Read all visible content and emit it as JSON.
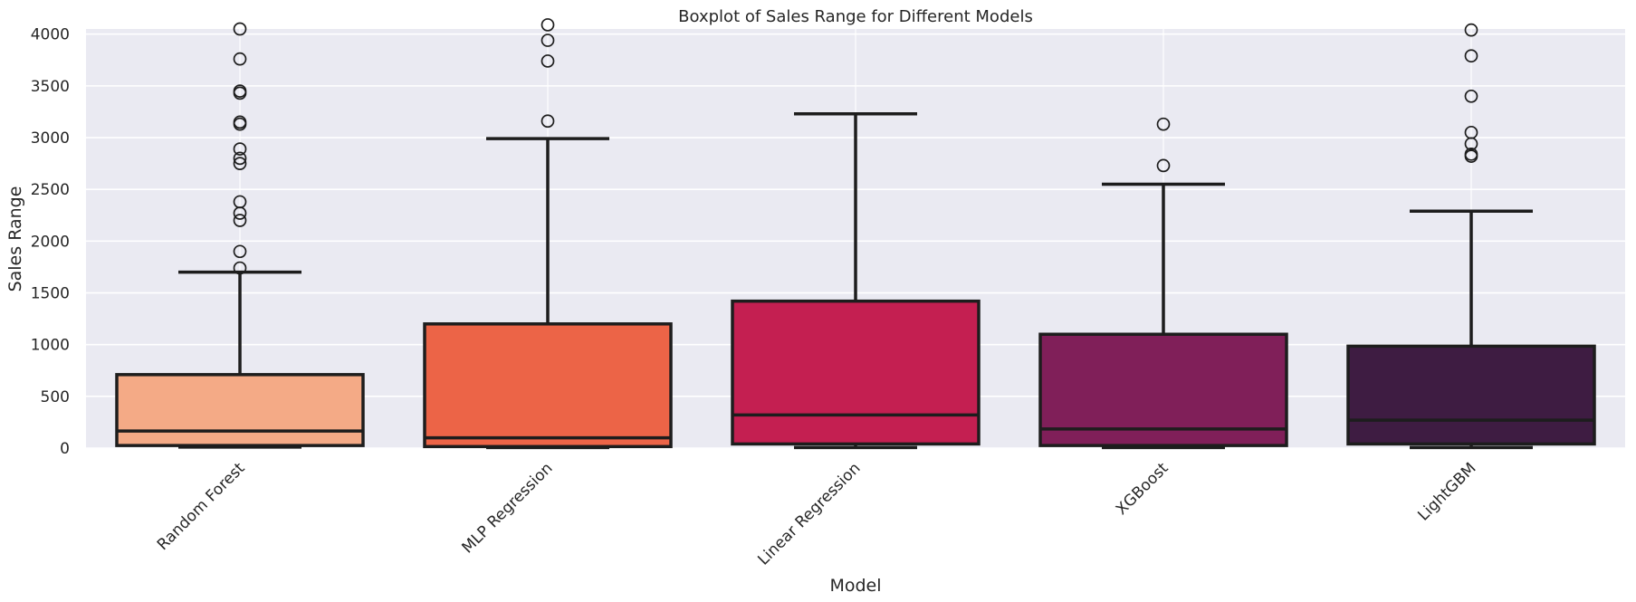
{
  "chart_data": {
    "type": "box",
    "title": "Boxplot of Sales Range for Different Models",
    "xlabel": "Model",
    "ylabel": "Sales Range",
    "ylim": [
      0,
      4050
    ],
    "yticks": [
      0,
      500,
      1000,
      1500,
      2000,
      2500,
      3000,
      3500,
      4000
    ],
    "grid": true,
    "categories": [
      "Random Forest",
      "MLP Regression",
      "Linear Regression",
      "XGBoost",
      "LightGBM"
    ],
    "colors": [
      "#f4aa86",
      "#ec6447",
      "#c41f51",
      "#801f59",
      "#3e1c42"
    ],
    "series": [
      {
        "name": "Random Forest",
        "whisker_low": 10,
        "q1": 25,
        "median": 165,
        "q3": 710,
        "whisker_high": 1700,
        "outliers": [
          1740,
          1900,
          2200,
          2270,
          2380,
          2750,
          2800,
          2890,
          3130,
          3150,
          3430,
          3450,
          3760,
          4050
        ]
      },
      {
        "name": "MLP Regression",
        "whisker_low": 5,
        "q1": 15,
        "median": 100,
        "q3": 1200,
        "whisker_high": 2990,
        "outliers": [
          3160,
          3740,
          3940,
          4090
        ]
      },
      {
        "name": "Linear Regression",
        "whisker_low": 5,
        "q1": 40,
        "median": 320,
        "q3": 1420,
        "whisker_high": 3230,
        "outliers": []
      },
      {
        "name": "XGBoost",
        "whisker_low": 5,
        "q1": 25,
        "median": 185,
        "q3": 1100,
        "whisker_high": 2550,
        "outliers": [
          2730,
          3130
        ]
      },
      {
        "name": "LightGBM",
        "whisker_low": 5,
        "q1": 40,
        "median": 270,
        "q3": 985,
        "whisker_high": 2290,
        "outliers": [
          2820,
          2840,
          2940,
          3050,
          3400,
          3790,
          4040
        ]
      }
    ]
  }
}
